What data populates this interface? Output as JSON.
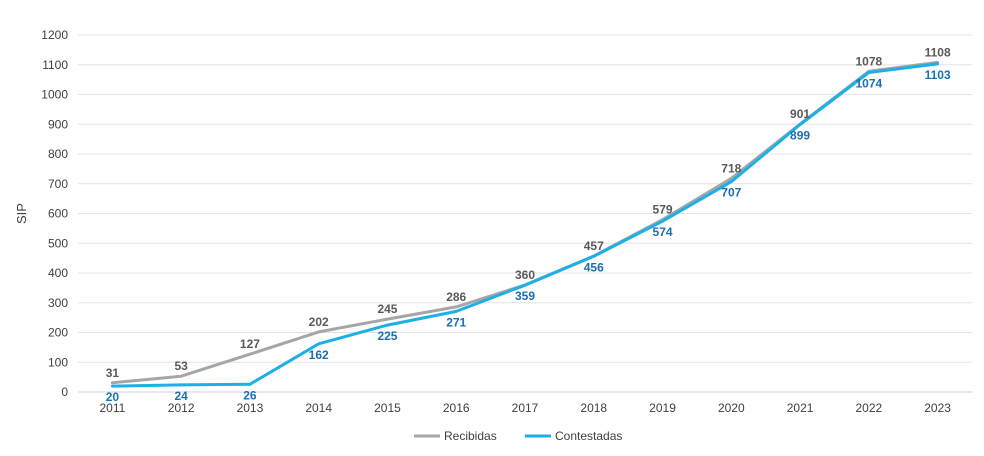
{
  "chart_data": {
    "type": "line",
    "title": "",
    "xlabel": "",
    "ylabel": "SIP",
    "ylim": [
      0,
      1200
    ],
    "ytick_step": 100,
    "grid": true,
    "legend_position": "bottom",
    "x": [
      "2011",
      "2012",
      "2013",
      "2014",
      "2015",
      "2016",
      "2017",
      "2018",
      "2019",
      "2020",
      "2021",
      "2022",
      "2023"
    ],
    "series": [
      {
        "name": "Recibidas",
        "color": "#a6a6a6",
        "label_color": "#595959",
        "values": [
          31,
          53,
          127,
          202,
          245,
          286,
          360,
          457,
          579,
          718,
          901,
          1078,
          1108
        ]
      },
      {
        "name": "Contestadas",
        "color": "#1cb0e6",
        "label_color": "#1a6fb0",
        "values": [
          20,
          24,
          26,
          162,
          225,
          271,
          359,
          456,
          574,
          707,
          899,
          1074,
          1103
        ]
      }
    ]
  }
}
